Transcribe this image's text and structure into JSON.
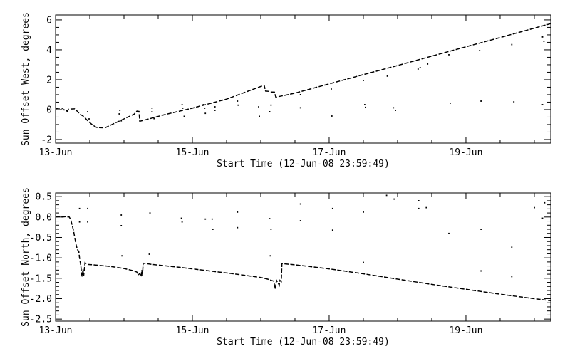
{
  "window": {
    "background": "#ffffff",
    "ink": "#000000"
  },
  "chart_data": [
    {
      "id": "sun-offset-west",
      "type": "line",
      "title": "",
      "xlabel": "Start Time (12-Jun-08 23:59:49)",
      "ylabel": "Sun Offset West, degrees",
      "x_unit": "day of June 2008",
      "xlim": [
        13.0,
        20.24
      ],
      "ylim": [
        -2.24,
        6.33
      ],
      "x_major_ticks": [
        {
          "v": 13,
          "label": "13-Jun"
        },
        {
          "v": 15,
          "label": "15-Jun"
        },
        {
          "v": 17,
          "label": "17-Jun"
        },
        {
          "v": 19,
          "label": "19-Jun"
        }
      ],
      "x_minor_step": 0.5,
      "y_major_ticks": [
        {
          "v": -2,
          "label": "-2"
        },
        {
          "v": 0,
          "label": "0"
        },
        {
          "v": 2,
          "label": "2"
        },
        {
          "v": 4,
          "label": "4"
        },
        {
          "v": 6,
          "label": "6"
        }
      ],
      "y_minor_step": 0.5,
      "grid": false,
      "legend": null,
      "line": [
        [
          13.0,
          0.07
        ],
        [
          13.06,
          0.1
        ],
        [
          13.1,
          0.1
        ],
        [
          13.12,
          -0.02
        ],
        [
          13.15,
          -0.02
        ],
        [
          13.17,
          -0.12
        ],
        [
          13.19,
          0.02
        ],
        [
          13.22,
          0.04
        ],
        [
          13.28,
          0.05
        ],
        [
          13.31,
          -0.08
        ],
        [
          13.34,
          -0.22
        ],
        [
          13.37,
          -0.35
        ],
        [
          13.4,
          -0.42
        ],
        [
          13.43,
          -0.55
        ],
        [
          13.46,
          -0.7
        ],
        [
          13.49,
          -0.82
        ],
        [
          13.52,
          -0.95
        ],
        [
          13.55,
          -1.05
        ],
        [
          13.58,
          -1.15
        ],
        [
          13.61,
          -1.2
        ],
        [
          13.72,
          -1.22
        ],
        [
          13.8,
          -1.05
        ],
        [
          14.0,
          -0.62
        ],
        [
          14.15,
          -0.3
        ],
        [
          14.17,
          -0.18
        ],
        [
          14.19,
          -0.1
        ],
        [
          14.22,
          -0.12
        ],
        [
          14.23,
          -0.78
        ],
        [
          14.3,
          -0.7
        ],
        [
          14.6,
          -0.33
        ],
        [
          15.0,
          0.1
        ],
        [
          15.5,
          0.7
        ],
        [
          16.0,
          1.55
        ],
        [
          16.05,
          1.62
        ],
        [
          16.07,
          1.24
        ],
        [
          16.12,
          1.22
        ],
        [
          16.14,
          1.18
        ],
        [
          16.2,
          1.17
        ],
        [
          16.22,
          0.83
        ],
        [
          16.5,
          1.1
        ],
        [
          17.0,
          1.72
        ],
        [
          17.5,
          2.34
        ],
        [
          18.0,
          2.95
        ],
        [
          18.5,
          3.58
        ],
        [
          19.0,
          4.2
        ],
        [
          19.5,
          4.82
        ],
        [
          20.0,
          5.45
        ],
        [
          20.24,
          5.75
        ]
      ],
      "scatter": [
        [
          13.47,
          -0.14
        ],
        [
          13.49,
          -0.62
        ],
        [
          13.93,
          -0.29
        ],
        [
          13.94,
          -0.05
        ],
        [
          13.96,
          -0.75
        ],
        [
          14.41,
          0.1
        ],
        [
          14.41,
          -0.14
        ],
        [
          14.44,
          -0.6
        ],
        [
          14.85,
          0.33
        ],
        [
          14.86,
          0.1
        ],
        [
          14.88,
          -0.45
        ],
        [
          15.16,
          0.33
        ],
        [
          15.18,
          0.1
        ],
        [
          15.19,
          -0.25
        ],
        [
          15.33,
          0.19
        ],
        [
          15.33,
          -0.05
        ],
        [
          15.66,
          0.57
        ],
        [
          15.67,
          0.3
        ],
        [
          15.97,
          0.19
        ],
        [
          15.98,
          -0.45
        ],
        [
          16.13,
          -0.14
        ],
        [
          16.15,
          0.3
        ],
        [
          16.58,
          1.0
        ],
        [
          16.58,
          0.12
        ],
        [
          17.03,
          1.38
        ],
        [
          17.04,
          -0.43
        ],
        [
          17.5,
          1.95
        ],
        [
          17.52,
          0.33
        ],
        [
          17.53,
          0.15
        ],
        [
          17.85,
          2.24
        ],
        [
          17.94,
          0.12
        ],
        [
          17.97,
          -0.05
        ],
        [
          18.3,
          2.71
        ],
        [
          18.33,
          2.81
        ],
        [
          18.44,
          3.05
        ],
        [
          18.75,
          3.67
        ],
        [
          18.77,
          0.43
        ],
        [
          19.2,
          3.95
        ],
        [
          19.22,
          0.57
        ],
        [
          19.67,
          4.35
        ],
        [
          19.7,
          0.52
        ],
        [
          20.12,
          4.86
        ],
        [
          20.14,
          4.57
        ],
        [
          20.12,
          0.33
        ]
      ]
    },
    {
      "id": "sun-offset-north",
      "type": "line",
      "title": "",
      "xlabel": "Start Time (12-Jun-08 23:59:49)",
      "ylabel": "Sun Offset North, degrees",
      "x_unit": "day of June 2008",
      "xlim": [
        13.0,
        20.24
      ],
      "ylim": [
        -2.55,
        0.59
      ],
      "x_major_ticks": [
        {
          "v": 13,
          "label": "13-Jun"
        },
        {
          "v": 15,
          "label": "15-Jun"
        },
        {
          "v": 17,
          "label": "17-Jun"
        },
        {
          "v": 19,
          "label": "19-Jun"
        }
      ],
      "x_minor_step": 0.5,
      "y_major_ticks": [
        {
          "v": 0.5,
          "label": "0.5"
        },
        {
          "v": 0.0,
          "label": "0.0"
        },
        {
          "v": -0.5,
          "label": "-0.5"
        },
        {
          "v": -1.0,
          "label": "-1.0"
        },
        {
          "v": -1.5,
          "label": "-1.5"
        },
        {
          "v": -2.0,
          "label": "-2.0"
        },
        {
          "v": -2.5,
          "label": "-2.5"
        }
      ],
      "y_minor_step": 0.1,
      "grid": false,
      "legend": null,
      "line": [
        [
          13.0,
          0.0
        ],
        [
          13.05,
          0.01
        ],
        [
          13.1,
          0.0
        ],
        [
          13.15,
          0.01
        ],
        [
          13.2,
          0.0
        ],
        [
          13.22,
          -0.06
        ],
        [
          13.24,
          -0.18
        ],
        [
          13.26,
          -0.32
        ],
        [
          13.28,
          -0.5
        ],
        [
          13.3,
          -0.68
        ],
        [
          13.32,
          -0.8
        ],
        [
          13.34,
          -0.84
        ],
        [
          13.35,
          -1.0
        ],
        [
          13.37,
          -1.2
        ],
        [
          13.38,
          -1.4
        ],
        [
          13.39,
          -1.46
        ],
        [
          13.4,
          -1.28
        ],
        [
          13.41,
          -1.45
        ],
        [
          13.43,
          -1.12
        ],
        [
          13.46,
          -1.16
        ],
        [
          13.55,
          -1.17
        ],
        [
          13.8,
          -1.21
        ],
        [
          14.0,
          -1.26
        ],
        [
          14.15,
          -1.32
        ],
        [
          14.19,
          -1.35
        ],
        [
          14.21,
          -1.42
        ],
        [
          14.23,
          -1.38
        ],
        [
          14.25,
          -1.46
        ],
        [
          14.26,
          -1.3
        ],
        [
          14.27,
          -1.45
        ],
        [
          14.28,
          -1.13
        ],
        [
          14.4,
          -1.16
        ],
        [
          14.8,
          -1.23
        ],
        [
          15.2,
          -1.31
        ],
        [
          15.6,
          -1.39
        ],
        [
          16.0,
          -1.48
        ],
        [
          16.1,
          -1.52
        ],
        [
          16.15,
          -1.55
        ],
        [
          16.19,
          -1.57
        ],
        [
          16.21,
          -1.76
        ],
        [
          16.23,
          -1.55
        ],
        [
          16.25,
          -1.6
        ],
        [
          16.27,
          -1.67
        ],
        [
          16.28,
          -1.55
        ],
        [
          16.3,
          -1.58
        ],
        [
          16.31,
          -1.14
        ],
        [
          16.5,
          -1.17
        ],
        [
          17.0,
          -1.27
        ],
        [
          17.5,
          -1.39
        ],
        [
          18.0,
          -1.52
        ],
        [
          18.5,
          -1.65
        ],
        [
          19.0,
          -1.77
        ],
        [
          19.5,
          -1.89
        ],
        [
          20.0,
          -2.0
        ],
        [
          20.24,
          -2.05
        ]
      ],
      "scatter": [
        [
          13.35,
          0.21
        ],
        [
          13.35,
          -0.12
        ],
        [
          13.47,
          0.21
        ],
        [
          13.47,
          -0.12
        ],
        [
          13.96,
          0.05
        ],
        [
          13.96,
          -0.21
        ],
        [
          13.97,
          -0.95
        ],
        [
          14.37,
          -0.91
        ],
        [
          14.38,
          0.1
        ],
        [
          14.84,
          -0.03
        ],
        [
          14.85,
          -0.12
        ],
        [
          15.19,
          -0.05
        ],
        [
          15.29,
          -0.05
        ],
        [
          15.3,
          -0.3
        ],
        [
          15.66,
          0.12
        ],
        [
          15.66,
          -0.26
        ],
        [
          16.13,
          -0.04
        ],
        [
          16.15,
          -0.3
        ],
        [
          16.14,
          -0.95
        ],
        [
          16.58,
          0.32
        ],
        [
          16.58,
          -0.09
        ],
        [
          17.05,
          0.21
        ],
        [
          17.05,
          -0.32
        ],
        [
          17.5,
          0.12
        ],
        [
          17.5,
          -1.11
        ],
        [
          17.84,
          0.53
        ],
        [
          17.95,
          0.44
        ],
        [
          18.31,
          0.4
        ],
        [
          18.31,
          0.21
        ],
        [
          18.42,
          0.23
        ],
        [
          18.75,
          -0.4
        ],
        [
          19.22,
          -0.3
        ],
        [
          19.22,
          -1.32
        ],
        [
          19.67,
          -0.74
        ],
        [
          19.67,
          -1.46
        ],
        [
          20.0,
          0.23
        ],
        [
          20.12,
          -0.03
        ],
        [
          20.15,
          0.35
        ]
      ]
    }
  ]
}
